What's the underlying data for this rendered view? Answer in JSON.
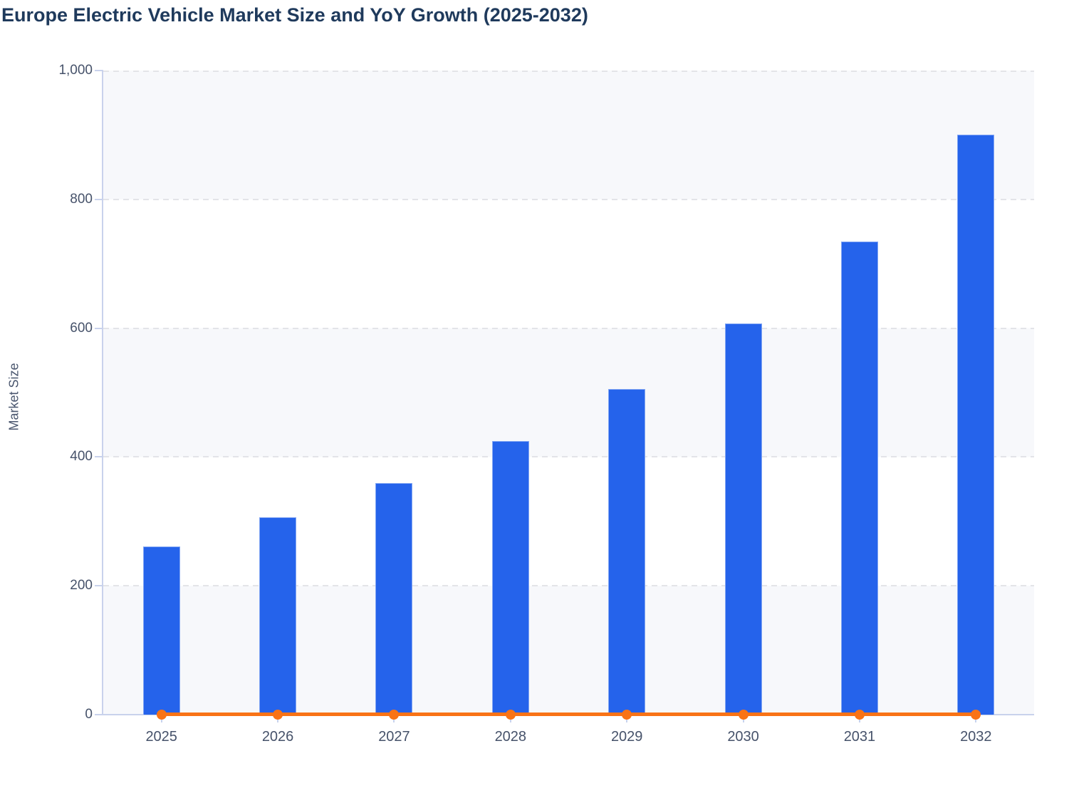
{
  "chart_data": {
    "type": "combo",
    "title": "Europe Electric Vehicle Market Size and YoY Growth (2025-2032)",
    "categories": [
      "2025",
      "2026",
      "2027",
      "2028",
      "2029",
      "2030",
      "2031",
      "2032"
    ],
    "series": [
      {
        "name": "Market Size",
        "type": "bar",
        "color": "#2563eb",
        "values": [
          261,
          306,
          360,
          425,
          505,
          607,
          734,
          900
        ]
      },
      {
        "name": "YoY Growth",
        "type": "line",
        "color": "#f97316",
        "values": [
          0,
          0,
          0,
          0,
          0,
          0,
          0,
          0
        ],
        "render_note": "flat line with round markers sitting on the zero baseline of the Market Size axis"
      }
    ],
    "xlabel": "",
    "ylabel": "Market Size",
    "ylim": [
      0,
      1000
    ],
    "yticks": [
      0,
      200,
      400,
      600,
      800,
      1000
    ],
    "ytick_labels": [
      "0",
      "200",
      "400",
      "600",
      "800",
      "1,000"
    ],
    "grid": "dashed horizontal gridlines at each y tick",
    "plot_bands": "alternating light-gray / white horizontal bands every 200 units, gray starting at 0-200",
    "legend": "none"
  },
  "colors": {
    "bar": "#2563eb",
    "bar_edge": "#84a7f3",
    "line": "#f97316",
    "band": "#f7f8fb",
    "grid": "#e3e4e8",
    "axis": "#c9d2ec",
    "title": "#1f3a5c",
    "tick_label": "#46526a",
    "axis_title": "#4a566e"
  }
}
